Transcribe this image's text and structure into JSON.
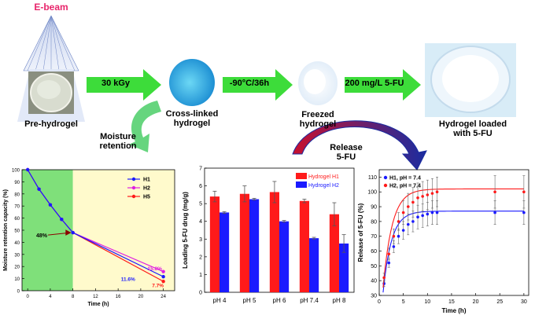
{
  "process": {
    "ebeam_label": "E-beam",
    "stage1_label": "Pre-hydrogel",
    "stage2_label": "Cross-linked hydrogel",
    "stage3_label": "Freezed hydrogel",
    "stage4_label": "Hydrogel loaded with 5-FU",
    "arrow1_label": "30 kGy",
    "arrow2_label": "-90°C/36h",
    "arrow3_label": "200 mg/L 5-FU",
    "moisture_arrow_label": "Moisture retention",
    "release_arrow_label": "Release 5-FU"
  },
  "colors": {
    "ebeam_pink": "#e8256b",
    "arrow_green": "#3ddc3a",
    "red": "#ff1a1a",
    "blue": "#1a1aff",
    "magenta": "#e020e0"
  },
  "chart_data": [
    {
      "type": "line",
      "ylabel": "Moisture retention capacity (%)",
      "xlabel": "Time (h)",
      "xlim": [
        -1,
        26
      ],
      "ylim": [
        0,
        100
      ],
      "xticks": [
        0,
        4,
        8,
        12,
        16,
        20,
        24
      ],
      "yticks": [
        0,
        10,
        20,
        30,
        40,
        50,
        60,
        70,
        80,
        90,
        100
      ],
      "legend": [
        "H1",
        "H2",
        "H5"
      ],
      "series": [
        {
          "name": "H1",
          "x": [
            0,
            2,
            4,
            6,
            8,
            24
          ],
          "y": [
            100,
            84,
            71,
            59,
            48,
            11.6
          ]
        },
        {
          "name": "H2",
          "x": [
            0,
            2,
            4,
            6,
            8,
            24
          ],
          "y": [
            100,
            84,
            71,
            59,
            48,
            15.8
          ]
        },
        {
          "name": "H5",
          "x": [
            0,
            2,
            4,
            6,
            8,
            24
          ],
          "y": [
            100,
            84,
            71,
            59,
            48,
            7.7
          ]
        }
      ],
      "annotations": [
        "48%",
        "15.8%",
        "11.6%",
        "7.7%"
      ],
      "shaded_regions": [
        "green 0-8 h",
        "yellow 8-26 h"
      ]
    },
    {
      "type": "bar",
      "ylabel": "Loading 5-FU drug (mg/g)",
      "categories": [
        "pH 4",
        "pH 5",
        "pH 6",
        "pH 7.4",
        "pH 8"
      ],
      "ylim": [
        0,
        7
      ],
      "yticks": [
        0,
        1,
        2,
        3,
        4,
        5,
        6,
        7
      ],
      "series": [
        {
          "name": "Hydrogel H1",
          "values": [
            5.4,
            5.55,
            5.65,
            5.15,
            4.4
          ],
          "errors": [
            0.3,
            0.45,
            0.6,
            0.1,
            0.65
          ]
        },
        {
          "name": "Hydrogel H2",
          "values": [
            4.5,
            5.25,
            4.0,
            3.05,
            2.75
          ],
          "errors": [
            0.05,
            0.05,
            0.05,
            0.05,
            0.5
          ]
        }
      ]
    },
    {
      "type": "scatter",
      "ylabel": "Release of 5-FU (%)",
      "xlabel": "Time (h)",
      "xlim": [
        0,
        31
      ],
      "ylim": [
        30,
        115
      ],
      "xticks": [
        0,
        5,
        10,
        15,
        20,
        25,
        30
      ],
      "yticks": [
        30,
        40,
        50,
        60,
        70,
        80,
        90,
        100,
        110
      ],
      "series": [
        {
          "name": "H1, pH = 7.4",
          "x": [
            1,
            2,
            3,
            4,
            5,
            6,
            7,
            8,
            9,
            10,
            11,
            12,
            24,
            30
          ],
          "y": [
            38,
            52,
            63,
            70,
            74,
            78,
            80,
            83,
            84,
            85,
            86,
            86,
            86,
            86
          ],
          "errors": [
            2,
            3,
            4,
            5,
            6,
            7,
            7,
            8,
            8,
            8,
            8,
            8,
            8,
            8
          ]
        },
        {
          "name": "H2, pH = 7.4",
          "x": [
            1,
            2,
            3,
            4,
            5,
            6,
            7,
            8,
            9,
            10,
            11,
            12,
            24,
            30
          ],
          "y": [
            42,
            58,
            70,
            80,
            86,
            90,
            93,
            96,
            97,
            98,
            99,
            100,
            100,
            100
          ],
          "errors": [
            3,
            4,
            5,
            6,
            8,
            9,
            10,
            10,
            10,
            10,
            10,
            10,
            11,
            11
          ]
        }
      ],
      "fit_plateaus": [
        87,
        102
      ]
    }
  ]
}
